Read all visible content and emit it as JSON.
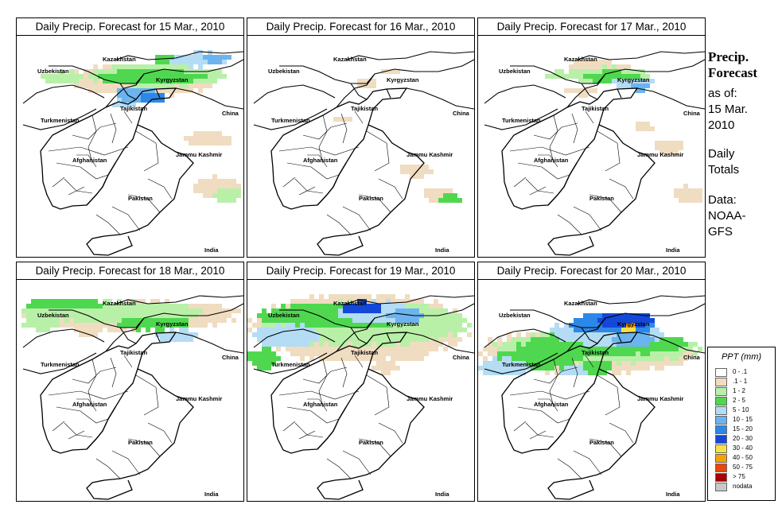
{
  "panels": [
    {
      "title": "Daily Precip. Forecast for  15 Mar., 2010",
      "pattern": "mar15"
    },
    {
      "title": "Daily Precip. Forecast for  16 Mar., 2010",
      "pattern": "mar16"
    },
    {
      "title": "Daily Precip. Forecast for  17 Mar., 2010",
      "pattern": "mar17"
    },
    {
      "title": "Daily Precip. Forecast for  18 Mar., 2010",
      "pattern": "mar18"
    },
    {
      "title": "Daily Precip. Forecast for  19 Mar., 2010",
      "pattern": "mar19"
    },
    {
      "title": "Daily Precip. Forecast for  20 Mar., 2010",
      "pattern": "mar20"
    }
  ],
  "map_labels": [
    "Kazakhstan",
    "Uzbekistan",
    "Kyrgyzstan",
    "Tajikistan",
    "China",
    "Turkmenistan",
    "Jammu Kashmir",
    "Afghanistan",
    "Pakistan",
    "India"
  ],
  "side": {
    "title_line1": "Precip.",
    "title_line2": "Forecast",
    "asof_line1": "as of:",
    "asof_line2": "15 Mar.",
    "asof_line3": "2010",
    "totals_line1": "Daily",
    "totals_line2": "Totals",
    "data_line1": "Data:",
    "data_line2": "NOAA-",
    "data_line3": "GFS"
  },
  "legend": {
    "title": "PPT (mm)",
    "items": [
      {
        "label": "0 - .1",
        "color": "#ffffff"
      },
      {
        "label": ".1 - 1",
        "color": "#f0dcc0"
      },
      {
        "label": "1 - 2",
        "color": "#b8f0a8"
      },
      {
        "label": "2 - 5",
        "color": "#4fd84f"
      },
      {
        "label": "5 - 10",
        "color": "#b4dcf4"
      },
      {
        "label": "10 - 15",
        "color": "#6cb4f0"
      },
      {
        "label": "15 - 20",
        "color": "#2c88e8"
      },
      {
        "label": "20 - 30",
        "color": "#1448d8"
      },
      {
        "label": "30 - 40",
        "color": "#f8e048"
      },
      {
        "label": "40 - 50",
        "color": "#f8a000"
      },
      {
        "label": "50 - 75",
        "color": "#e84808"
      },
      {
        "label": "> 75",
        "color": "#a80000"
      },
      {
        "label": "nodata",
        "color": "#c8c8c8"
      }
    ]
  }
}
